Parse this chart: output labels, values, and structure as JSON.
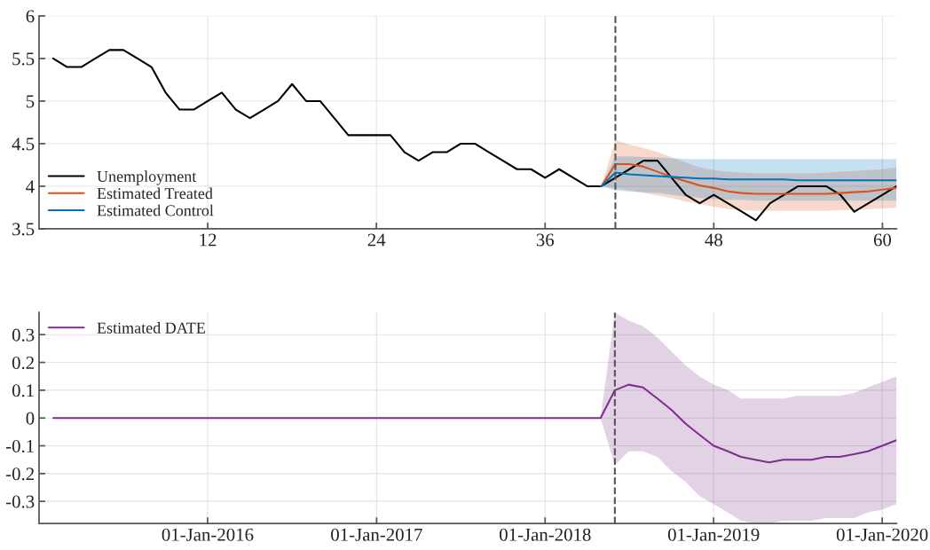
{
  "chart_data": [
    {
      "type": "line",
      "xlim": [
        0,
        61
      ],
      "ylim": [
        3.5,
        6
      ],
      "xticks": [
        12,
        24,
        36,
        48,
        60
      ],
      "yticks": [
        3.5,
        4,
        4.5,
        5,
        5.5,
        6
      ],
      "grid": true,
      "legend": "bottom left",
      "x": [
        1,
        2,
        3,
        4,
        5,
        6,
        7,
        8,
        9,
        10,
        11,
        12,
        13,
        14,
        15,
        16,
        17,
        18,
        19,
        20,
        21,
        22,
        23,
        24,
        25,
        26,
        27,
        28,
        29,
        30,
        31,
        32,
        33,
        34,
        35,
        36,
        37,
        38,
        39,
        40,
        41,
        42,
        43,
        44,
        45,
        46,
        47,
        48,
        49,
        50,
        51,
        52,
        53,
        54,
        55,
        56,
        57,
        58,
        59,
        60,
        61
      ],
      "series": [
        {
          "name": "Unemployment",
          "color": "#000000",
          "values": [
            5.5,
            5.4,
            5.4,
            5.5,
            5.6,
            5.6,
            5.5,
            5.4,
            5.1,
            4.9,
            4.9,
            5.0,
            5.1,
            4.9,
            4.8,
            4.9,
            5.0,
            5.2,
            5.0,
            5.0,
            4.8,
            4.6,
            4.6,
            4.6,
            4.6,
            4.4,
            4.3,
            4.4,
            4.4,
            4.5,
            4.5,
            4.4,
            4.3,
            4.2,
            4.2,
            4.1,
            4.2,
            4.1,
            4.0,
            4.0,
            4.1,
            4.2,
            4.3,
            4.3,
            4.1,
            3.9,
            3.8,
            3.9,
            3.8,
            3.7,
            3.6,
            3.8,
            3.9,
            4.0,
            4.0,
            4.0,
            3.9,
            3.7,
            3.8,
            3.9,
            4.0
          ]
        },
        {
          "name": "Estimated Treated",
          "color": "#d95319",
          "x": [
            40,
            41,
            42,
            43,
            44,
            45,
            46,
            47,
            48,
            49,
            50,
            51,
            52,
            53,
            54,
            55,
            56,
            57,
            58,
            59,
            60,
            61
          ],
          "values": [
            4.0,
            4.26,
            4.26,
            4.23,
            4.17,
            4.11,
            4.06,
            4.01,
            3.98,
            3.94,
            3.92,
            3.91,
            3.91,
            3.91,
            3.91,
            3.91,
            3.91,
            3.92,
            3.93,
            3.94,
            3.96,
            3.98
          ],
          "lower": [
            4.0,
            3.98,
            3.95,
            3.92,
            3.89,
            3.86,
            3.82,
            3.79,
            3.76,
            3.73,
            3.72,
            3.71,
            3.71,
            3.71,
            3.71,
            3.71,
            3.71,
            3.72,
            3.72,
            3.73,
            3.74,
            3.75
          ],
          "upper": [
            4.0,
            4.54,
            4.49,
            4.45,
            4.4,
            4.34,
            4.28,
            4.22,
            4.19,
            4.17,
            4.16,
            4.15,
            4.15,
            4.15,
            4.15,
            4.15,
            4.16,
            4.17,
            4.18,
            4.19,
            4.2,
            4.22
          ]
        },
        {
          "name": "Estimated Control",
          "color": "#0072bd",
          "x": [
            40,
            41,
            42,
            43,
            44,
            45,
            46,
            47,
            48,
            49,
            50,
            51,
            52,
            53,
            54,
            55,
            56,
            57,
            58,
            59,
            60,
            61
          ],
          "values": [
            4.0,
            4.16,
            4.14,
            4.13,
            4.12,
            4.11,
            4.1,
            4.09,
            4.09,
            4.08,
            4.08,
            4.08,
            4.08,
            4.08,
            4.07,
            4.07,
            4.07,
            4.07,
            4.07,
            4.07,
            4.07,
            4.07
          ],
          "lower": [
            4.0,
            3.95,
            3.94,
            3.93,
            3.92,
            3.9,
            3.88,
            3.86,
            3.85,
            3.84,
            3.84,
            3.83,
            3.83,
            3.83,
            3.83,
            3.83,
            3.83,
            3.83,
            3.83,
            3.83,
            3.83,
            3.83
          ],
          "upper": [
            4.0,
            4.35,
            4.35,
            4.34,
            4.34,
            4.33,
            4.32,
            4.32,
            4.32,
            4.32,
            4.32,
            4.32,
            4.32,
            4.32,
            4.32,
            4.32,
            4.32,
            4.32,
            4.32,
            4.32,
            4.32,
            4.32
          ]
        }
      ],
      "ref_lines": [
        {
          "axis": "x",
          "value": 41,
          "color": "#555555",
          "line_style": "dashed"
        }
      ]
    },
    {
      "type": "line",
      "xlim": [
        "2015-01-01",
        "2020-02-01"
      ],
      "ylim": [
        -0.38,
        0.38
      ],
      "xticks": [
        {
          "value": "2016-01-01",
          "label": "01-Jan-2016"
        },
        {
          "value": "2017-01-01",
          "label": "01-Jan-2017"
        },
        {
          "value": "2018-01-01",
          "label": "01-Jan-2018"
        },
        {
          "value": "2019-01-01",
          "label": "01-Jan-2019"
        },
        {
          "value": "2020-01-01",
          "label": "01-Jan-2020"
        }
      ],
      "yticks": [
        {
          "value": -0.3,
          "label": "-0.3"
        },
        {
          "value": -0.2,
          "label": "-0.2"
        },
        {
          "value": -0.1,
          "label": "-0.1"
        },
        0,
        0.1,
        0.2,
        0.3
      ],
      "grid": true,
      "legend": "top left",
      "x": [
        "2015-02",
        "2015-03",
        "2015-04",
        "2015-05",
        "2015-06",
        "2015-07",
        "2015-08",
        "2015-09",
        "2015-10",
        "2015-11",
        "2015-12",
        "2016-01",
        "2016-02",
        "2016-03",
        "2016-04",
        "2016-05",
        "2016-06",
        "2016-07",
        "2016-08",
        "2016-09",
        "2016-10",
        "2016-11",
        "2016-12",
        "2017-01",
        "2017-02",
        "2017-03",
        "2017-04",
        "2017-05",
        "2017-06",
        "2017-07",
        "2017-08",
        "2017-09",
        "2017-10",
        "2017-11",
        "2017-12",
        "2018-01",
        "2018-02",
        "2018-03",
        "2018-04",
        "2018-05",
        "2018-06",
        "2018-07",
        "2018-08",
        "2018-09",
        "2018-10",
        "2018-11",
        "2018-12",
        "2019-01",
        "2019-02",
        "2019-03",
        "2019-04",
        "2019-05",
        "2019-06",
        "2019-07",
        "2019-08",
        "2019-09",
        "2019-10",
        "2019-11",
        "2019-12",
        "2020-01",
        "2020-02"
      ],
      "series": [
        {
          "name": "Estimated DATE",
          "color": "#7e2f8e",
          "values": [
            0,
            0,
            0,
            0,
            0,
            0,
            0,
            0,
            0,
            0,
            0,
            0,
            0,
            0,
            0,
            0,
            0,
            0,
            0,
            0,
            0,
            0,
            0,
            0,
            0,
            0,
            0,
            0,
            0,
            0,
            0,
            0,
            0,
            0,
            0,
            0,
            0,
            0,
            0,
            0,
            0.1,
            0.12,
            0.11,
            0.07,
            0.03,
            -0.02,
            -0.06,
            -0.1,
            -0.12,
            -0.14,
            -0.15,
            -0.16,
            -0.15,
            -0.15,
            -0.15,
            -0.14,
            -0.14,
            -0.13,
            -0.12,
            -0.1,
            -0.08
          ],
          "lower": [
            0,
            0,
            0,
            0,
            0,
            0,
            0,
            0,
            0,
            0,
            0,
            0,
            0,
            0,
            0,
            0,
            0,
            0,
            0,
            0,
            0,
            0,
            0,
            0,
            0,
            0,
            0,
            0,
            0,
            0,
            0,
            0,
            0,
            0,
            0,
            0,
            0,
            0,
            0,
            0,
            -0.17,
            -0.12,
            -0.12,
            -0.14,
            -0.19,
            -0.23,
            -0.28,
            -0.31,
            -0.34,
            -0.37,
            -0.38,
            -0.38,
            -0.37,
            -0.37,
            -0.37,
            -0.36,
            -0.36,
            -0.36,
            -0.34,
            -0.33,
            -0.31
          ],
          "upper": [
            0,
            0,
            0,
            0,
            0,
            0,
            0,
            0,
            0,
            0,
            0,
            0,
            0,
            0,
            0,
            0,
            0,
            0,
            0,
            0,
            0,
            0,
            0,
            0,
            0,
            0,
            0,
            0,
            0,
            0,
            0,
            0,
            0,
            0,
            0,
            0,
            0,
            0,
            0,
            0,
            0.38,
            0.35,
            0.33,
            0.29,
            0.24,
            0.19,
            0.15,
            0.12,
            0.1,
            0.07,
            0.07,
            0.07,
            0.07,
            0.08,
            0.08,
            0.08,
            0.08,
            0.09,
            0.11,
            0.13,
            0.15
          ]
        }
      ],
      "ref_lines": [
        {
          "axis": "x",
          "value": "2018-06-01",
          "color": "#555555",
          "line_style": "dashed"
        }
      ]
    }
  ]
}
